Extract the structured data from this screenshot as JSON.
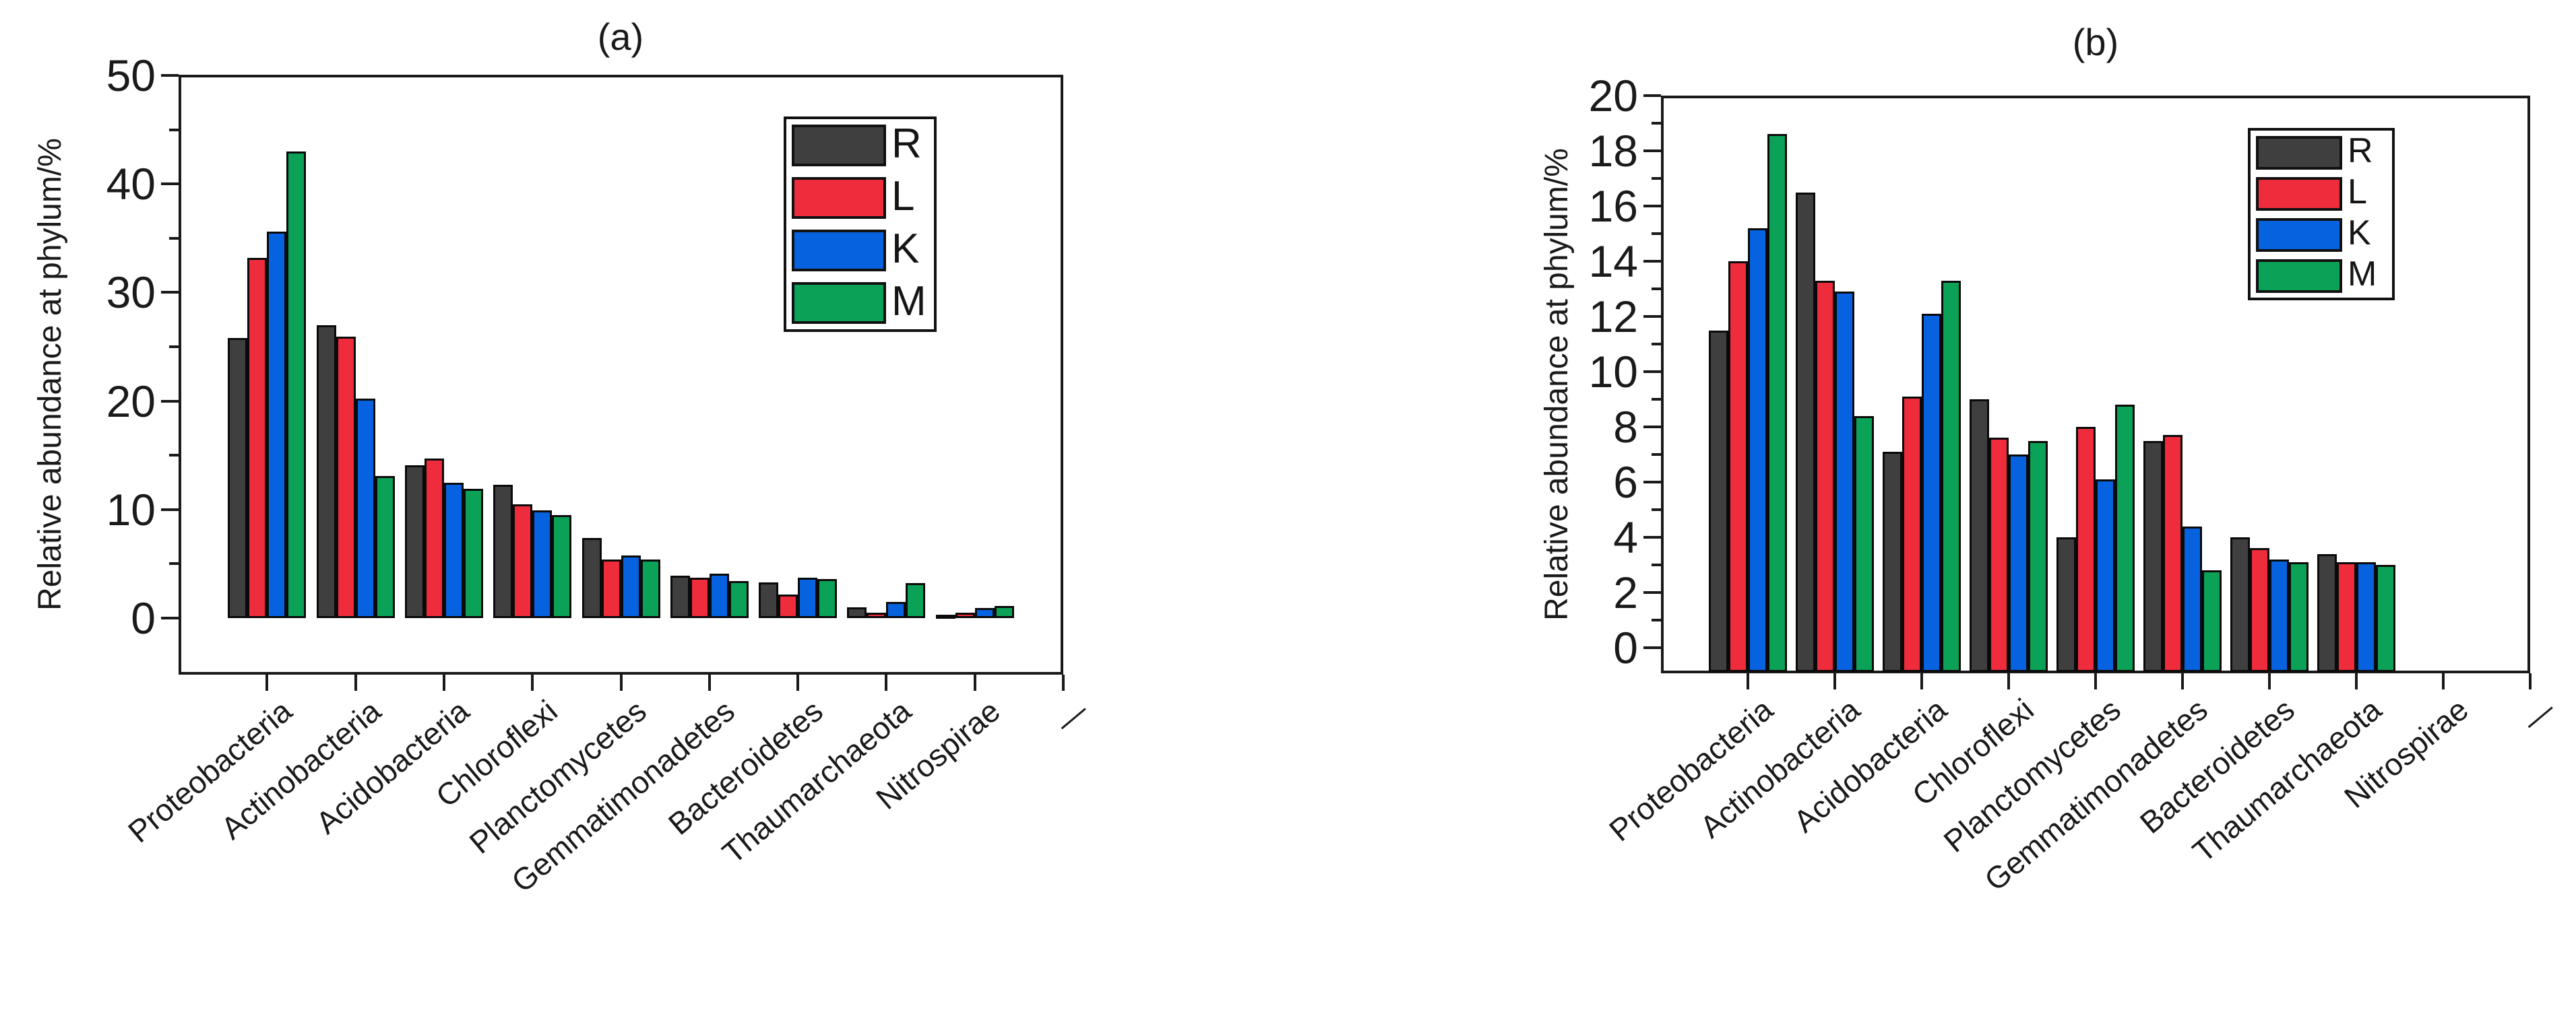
{
  "page": {
    "background": "#ffffff",
    "axis_color": "#1a1a1a",
    "text_color": "#1a1a1a"
  },
  "chart_data": [
    {
      "type": "bar",
      "title": "(a)",
      "ylabel": "Relative abundance at phylum/%",
      "xlabel": "",
      "ylim": [
        0,
        50
      ],
      "y_major_step": 10,
      "y_minor_step": 5,
      "grid": false,
      "legend_position": "upper-right-inside",
      "categories": [
        "Proteobacteria",
        "Actinobacteria",
        "Acidobacteria",
        "Chloroflexi",
        "Planctomycetes",
        "Gemmatimonadetes",
        "Bacteroidetes",
        "Thaumarchaeota",
        "Nitrospirae"
      ],
      "trailing_tick_label": "—",
      "series": [
        {
          "name": "R",
          "color": "#3F3F3F",
          "values": [
            25.8,
            27.0,
            14.1,
            12.3,
            7.4,
            3.9,
            3.3,
            1.0,
            0.3
          ]
        },
        {
          "name": "L",
          "color": "#EE2C3C",
          "values": [
            33.2,
            25.9,
            14.7,
            10.5,
            5.4,
            3.7,
            2.2,
            0.5,
            0.5
          ]
        },
        {
          "name": "K",
          "color": "#0762E0",
          "values": [
            35.6,
            20.2,
            12.5,
            9.9,
            5.8,
            4.1,
            3.7,
            1.5,
            0.9
          ]
        },
        {
          "name": "M",
          "color": "#0BA258",
          "values": [
            43.0,
            13.1,
            11.9,
            9.5,
            5.4,
            3.4,
            3.6,
            3.2,
            1.1
          ]
        }
      ]
    },
    {
      "type": "bar",
      "title": "(b)",
      "ylabel": "Relative abundance at phylum/%",
      "xlabel": "",
      "ylim": [
        0,
        20
      ],
      "y_major_step": 2,
      "y_minor_step": 1,
      "grid": false,
      "legend_position": "upper-right-inside",
      "categories": [
        "Proteobacteria",
        "Actinobacteria",
        "Acidobacteria",
        "Chloroflexi",
        "Planctomycetes",
        "Gemmatimonadetes",
        "Bacteroidetes",
        "Thaumarchaeota",
        "Nitrospirae"
      ],
      "trailing_tick_label": "—",
      "series": [
        {
          "name": "R",
          "color": "#3F3F3F",
          "values": [
            11.5,
            16.5,
            7.1,
            9.0,
            4.0,
            7.5,
            4.0,
            3.4,
            0
          ]
        },
        {
          "name": "L",
          "color": "#EE2C3C",
          "values": [
            14.0,
            13.3,
            9.1,
            7.6,
            8.0,
            7.7,
            3.6,
            3.1,
            0
          ]
        },
        {
          "name": "K",
          "color": "#0762E0",
          "values": [
            15.2,
            12.9,
            12.1,
            7.0,
            6.1,
            4.4,
            3.2,
            3.1,
            0
          ]
        },
        {
          "name": "M",
          "color": "#0BA258",
          "values": [
            18.6,
            8.4,
            13.3,
            7.5,
            8.8,
            2.8,
            3.1,
            3.0,
            0
          ]
        }
      ]
    }
  ]
}
